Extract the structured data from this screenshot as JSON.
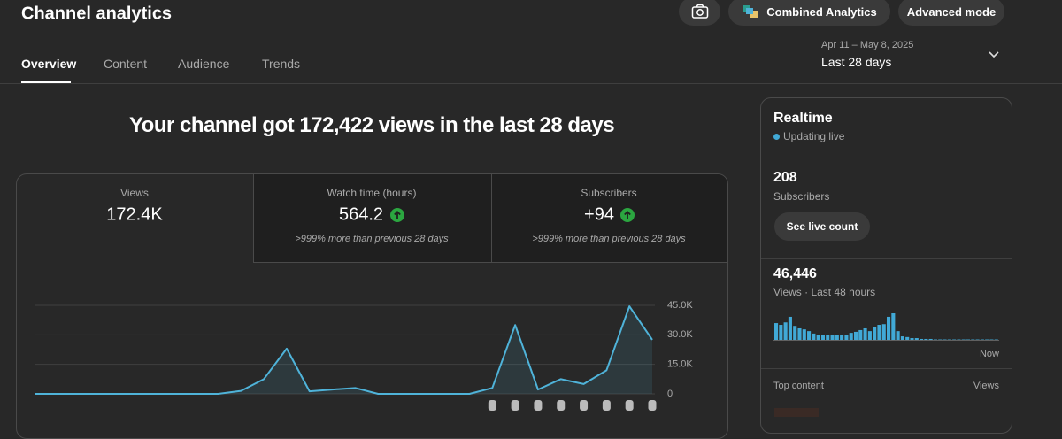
{
  "header": {
    "title": "Channel analytics",
    "buttons": [
      "Combined Analytics",
      "Advanced mode"
    ]
  },
  "tabs": [
    "Overview",
    "Content",
    "Audience",
    "Trends"
  ],
  "date_range": {
    "dates": "Apr 11 – May 8, 2025",
    "label": "Last 28 days"
  },
  "headline": "Your channel got 172,422 views in the last 28 days",
  "metrics": [
    {
      "label": "Views",
      "value": "172.4K"
    },
    {
      "label": "Watch time (hours)",
      "value": "564.2",
      "note": ">999% more than previous 28 days"
    },
    {
      "label": "Subscribers",
      "value": "+94",
      "note": ">999% more than previous 28 days"
    }
  ],
  "chart_data": {
    "type": "line",
    "color": "#4fb3d9",
    "values": [
      0,
      0,
      0,
      0,
      0,
      0,
      0,
      0,
      0,
      1500,
      7500,
      23000,
      1300,
      2200,
      3000,
      0,
      0,
      0,
      0,
      0,
      3000,
      35000,
      2200,
      7500,
      5000,
      12000,
      44500,
      27500
    ],
    "ylim": [
      0,
      45000
    ],
    "yticks": [
      0,
      {
        "value": 15000,
        "label": "15.0K"
      },
      {
        "value": 30000,
        "label": "30.0K"
      },
      {
        "value": 45000,
        "label": "45.0K"
      }
    ],
    "grid": true
  },
  "realtime": {
    "title": "Realtime",
    "status": "Updating live",
    "subscribers": "208",
    "subscribers_label": "Subscribers",
    "button": "See live count",
    "views": "46,446",
    "views_label": "Views · Last 48 hours",
    "now_label": "Now",
    "top_content": "Top content",
    "top_content_metric": "Views",
    "chart_data": {
      "type": "bar",
      "color": "#41a9d6",
      "values": [
        2400,
        2150,
        2500,
        3300,
        2000,
        1650,
        1500,
        1250,
        900,
        750,
        750,
        750,
        650,
        750,
        650,
        750,
        1000,
        1150,
        1400,
        1650,
        1250,
        1900,
        2150,
        2250,
        3300,
        3800,
        1250,
        500,
        400,
        250,
        250,
        130,
        130,
        130,
        60,
        60,
        60,
        60,
        60,
        60,
        60,
        60,
        60,
        60,
        60,
        60,
        60,
        60
      ],
      "ylim": [
        0,
        3800
      ]
    }
  }
}
